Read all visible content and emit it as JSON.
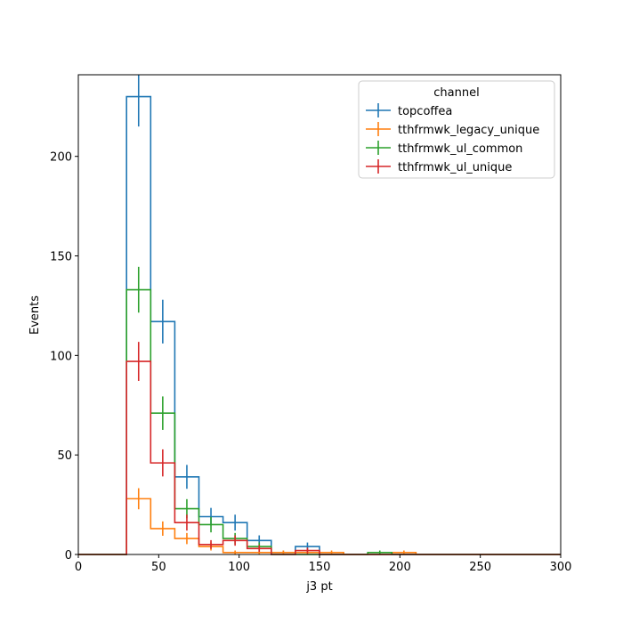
{
  "chart_data": {
    "type": "histogram-step",
    "xlabel": "j3 pt",
    "ylabel": "Events",
    "xlim": [
      0,
      300
    ],
    "ylim": [
      0,
      241
    ],
    "xticks": [
      0,
      50,
      100,
      150,
      200,
      250,
      300
    ],
    "yticks": [
      0,
      50,
      100,
      150,
      200
    ],
    "grid": false,
    "legend": {
      "title": "channel",
      "placement": "top-right"
    },
    "bin_edges": [
      0,
      10,
      20,
      30,
      45,
      60,
      75,
      90,
      105,
      120,
      135,
      150,
      165,
      180,
      195,
      210,
      225,
      240,
      255,
      270,
      285,
      300
    ],
    "series": [
      {
        "name": "topcoffea",
        "color": "#1f77b4",
        "values": [
          0,
          0,
          0,
          230,
          117,
          39,
          19,
          16,
          7,
          1,
          4,
          0,
          0,
          0,
          0,
          0,
          0,
          0,
          0,
          0,
          0
        ],
        "errors": [
          0,
          0,
          0,
          15,
          11,
          6,
          4.4,
          4,
          2.6,
          1,
          2,
          0,
          0,
          0,
          0,
          0,
          0,
          0,
          0,
          0,
          0
        ]
      },
      {
        "name": "tthfrmwk_legacy_unique",
        "color": "#ff7f0e",
        "values": [
          0,
          0,
          0,
          28,
          13,
          8,
          4,
          1,
          1,
          1,
          1,
          1,
          0,
          0,
          1,
          0,
          0,
          0,
          0,
          0,
          0
        ],
        "errors": [
          0,
          0,
          0,
          5.3,
          3.6,
          2.8,
          2,
          1,
          1,
          1,
          1,
          1,
          0,
          0,
          1,
          0,
          0,
          0,
          0,
          0,
          0
        ]
      },
      {
        "name": "tthfrmwk_ul_common",
        "color": "#2ca02c",
        "values": [
          0,
          0,
          0,
          133,
          71,
          23,
          15,
          8,
          4,
          0,
          0,
          0,
          0,
          1,
          0,
          0,
          0,
          0,
          0,
          0,
          0
        ],
        "errors": [
          0,
          0,
          0,
          11.5,
          8.4,
          4.8,
          3.9,
          2.8,
          2,
          0,
          0,
          0,
          0,
          1,
          0,
          0,
          0,
          0,
          0,
          0,
          0
        ]
      },
      {
        "name": "tthfrmwk_ul_unique",
        "color": "#d62728",
        "values": [
          0,
          0,
          0,
          97,
          46,
          16,
          5,
          7,
          3,
          0,
          2,
          0,
          0,
          0,
          0,
          0,
          0,
          0,
          0,
          0,
          0
        ],
        "errors": [
          0,
          0,
          0,
          9.8,
          6.8,
          4,
          2.2,
          2.6,
          1.7,
          0,
          1.4,
          0,
          0,
          0,
          0,
          0,
          0,
          0,
          0,
          0,
          0
        ]
      }
    ]
  }
}
